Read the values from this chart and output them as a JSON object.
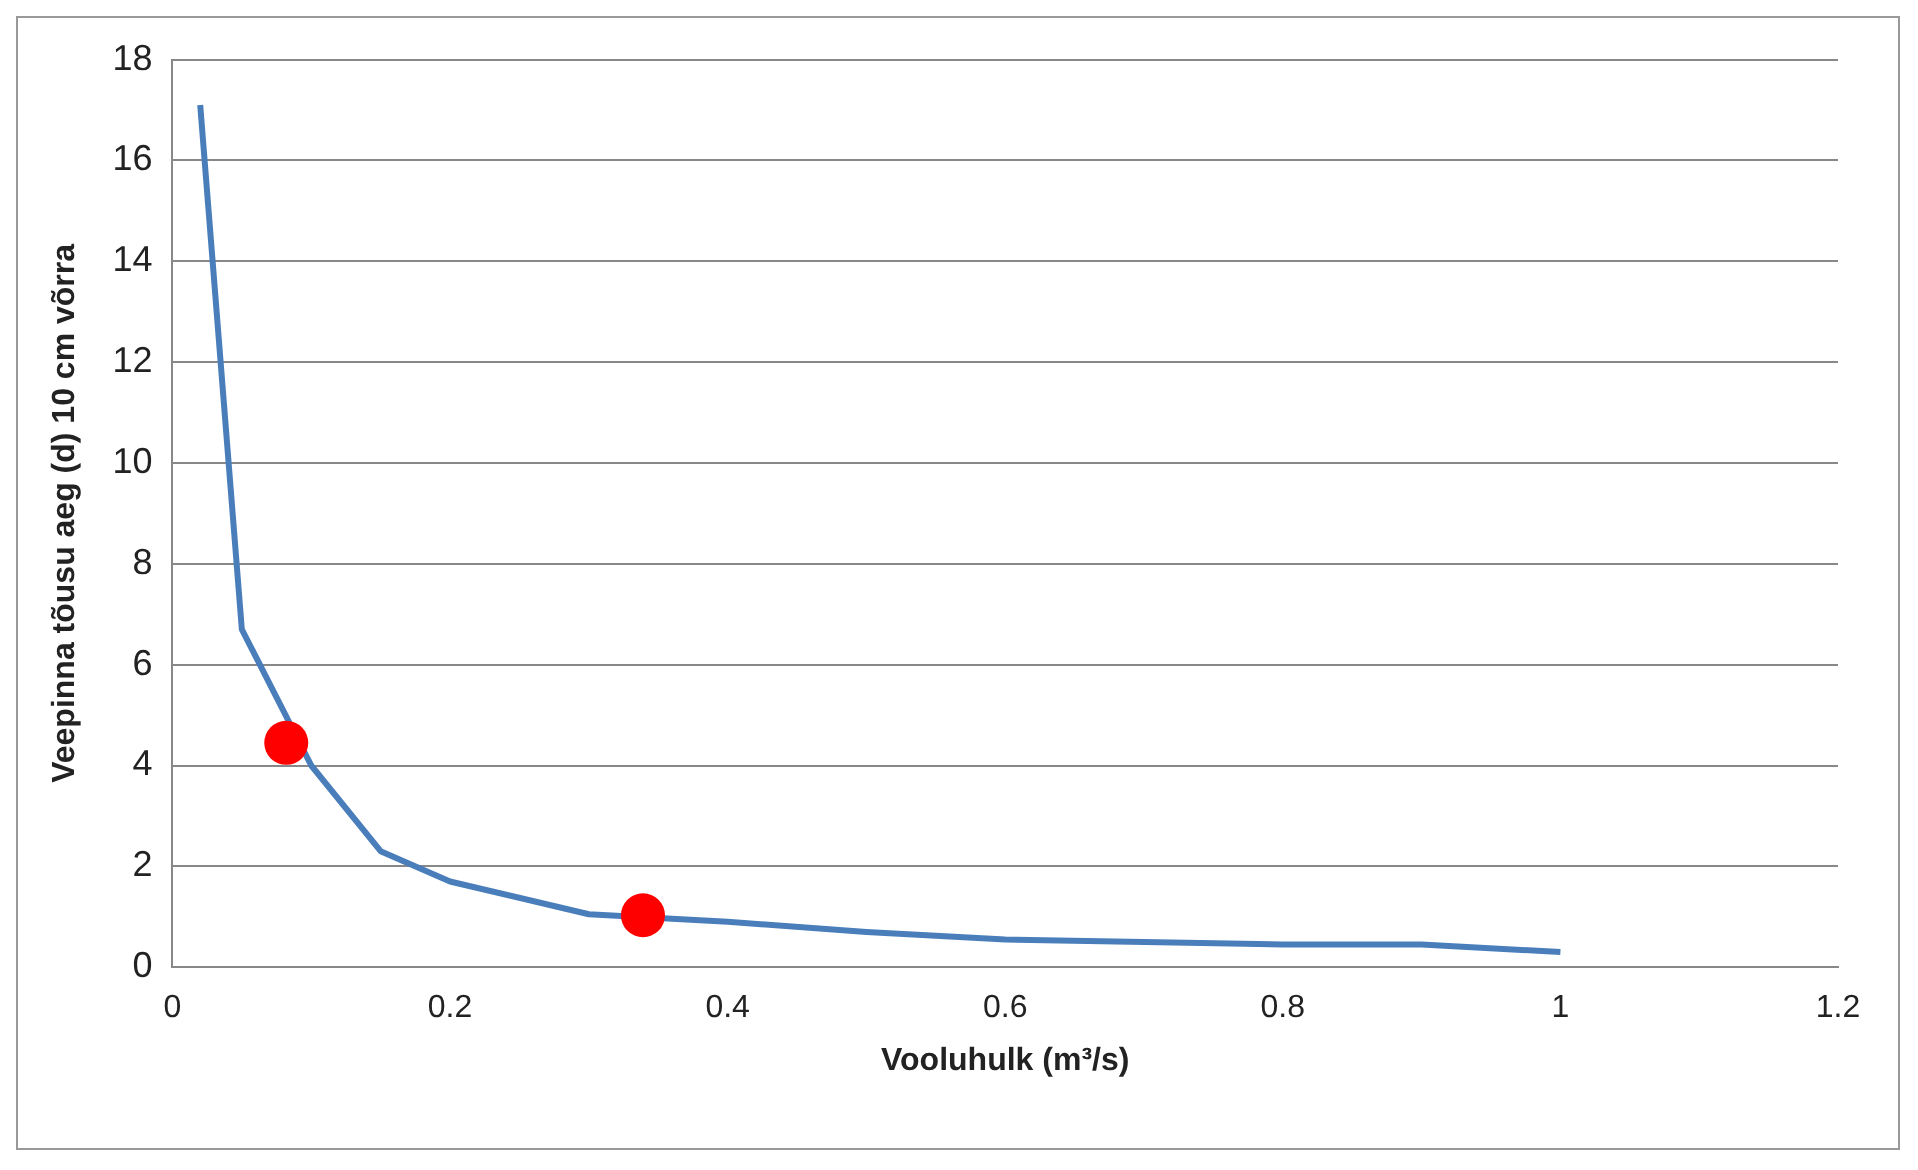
{
  "chart_data": {
    "type": "line",
    "xlabel": "Vooluhulk (m³/s)",
    "ylabel": "Veepinna tõusu aeg (d) 10 cm võrra",
    "xlim": [
      0,
      1.2
    ],
    "xticks": [
      0,
      0.2,
      0.4,
      0.6,
      0.8,
      1,
      1.2
    ],
    "ylim": [
      0,
      18
    ],
    "yticks": [
      0,
      2,
      4,
      6,
      8,
      10,
      12,
      14,
      16,
      18
    ],
    "grid": "y",
    "legend": false,
    "series": [
      {
        "type": "line",
        "color": "#4a7ebb",
        "marker": "none",
        "x": [
          0.02,
          0.05,
          0.1,
          0.15,
          0.2,
          0.3,
          0.4,
          0.5,
          0.6,
          0.8,
          0.9,
          1.0
        ],
        "values": [
          17.1,
          6.7,
          4.0,
          2.3,
          1.7,
          1.05,
          0.9,
          0.7,
          0.55,
          0.45,
          0.45,
          0.3
        ]
      },
      {
        "type": "scatter",
        "color": "#ff0000",
        "marker": "circle",
        "x": [
          0.082,
          0.339
        ],
        "values": [
          4.45,
          1.03
        ]
      }
    ]
  }
}
